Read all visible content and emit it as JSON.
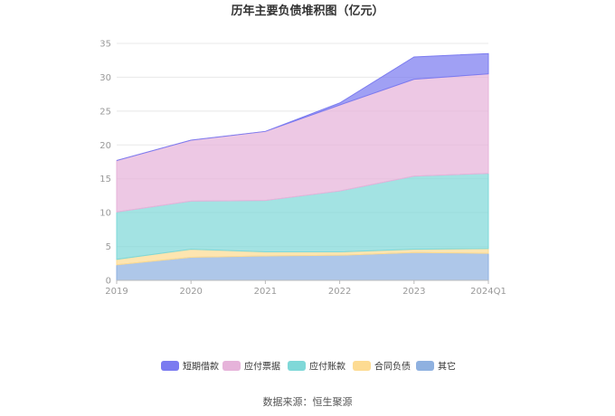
{
  "chart_data": {
    "type": "area",
    "title": "历年主要负债堆积图（亿元）",
    "categories": [
      "2019",
      "2020",
      "2021",
      "2022",
      "2023",
      "2024Q1"
    ],
    "ylim": [
      0,
      35
    ],
    "yticks": [
      0,
      5,
      10,
      15,
      20,
      25,
      30,
      35
    ],
    "stacked": true,
    "grid": true,
    "legend_position": "bottom",
    "series": [
      {
        "name": "其它",
        "color": "#8fb1e0",
        "values": [
          2.3,
          3.4,
          3.6,
          3.7,
          4.1,
          4.0
        ]
      },
      {
        "name": "合同负债",
        "color": "#fddb92",
        "values": [
          0.8,
          1.2,
          0.6,
          0.5,
          0.5,
          0.7
        ]
      },
      {
        "name": "应付账款",
        "color": "#7fd8d8",
        "values": [
          7.0,
          7.1,
          7.6,
          9.0,
          10.8,
          11.1
        ]
      },
      {
        "name": "应付票据",
        "color": "#e6b3da",
        "values": [
          7.6,
          9.0,
          10.2,
          12.7,
          14.3,
          14.7
        ]
      },
      {
        "name": "短期借款",
        "color": "#7b7bf0",
        "values": [
          0.0,
          0.0,
          0.0,
          0.3,
          3.3,
          3.0
        ]
      }
    ],
    "legend_order": [
      "短期借款",
      "应付票据",
      "应付账款",
      "合同负债",
      "其它"
    ]
  },
  "source_text": "数据来源：恒生聚源"
}
